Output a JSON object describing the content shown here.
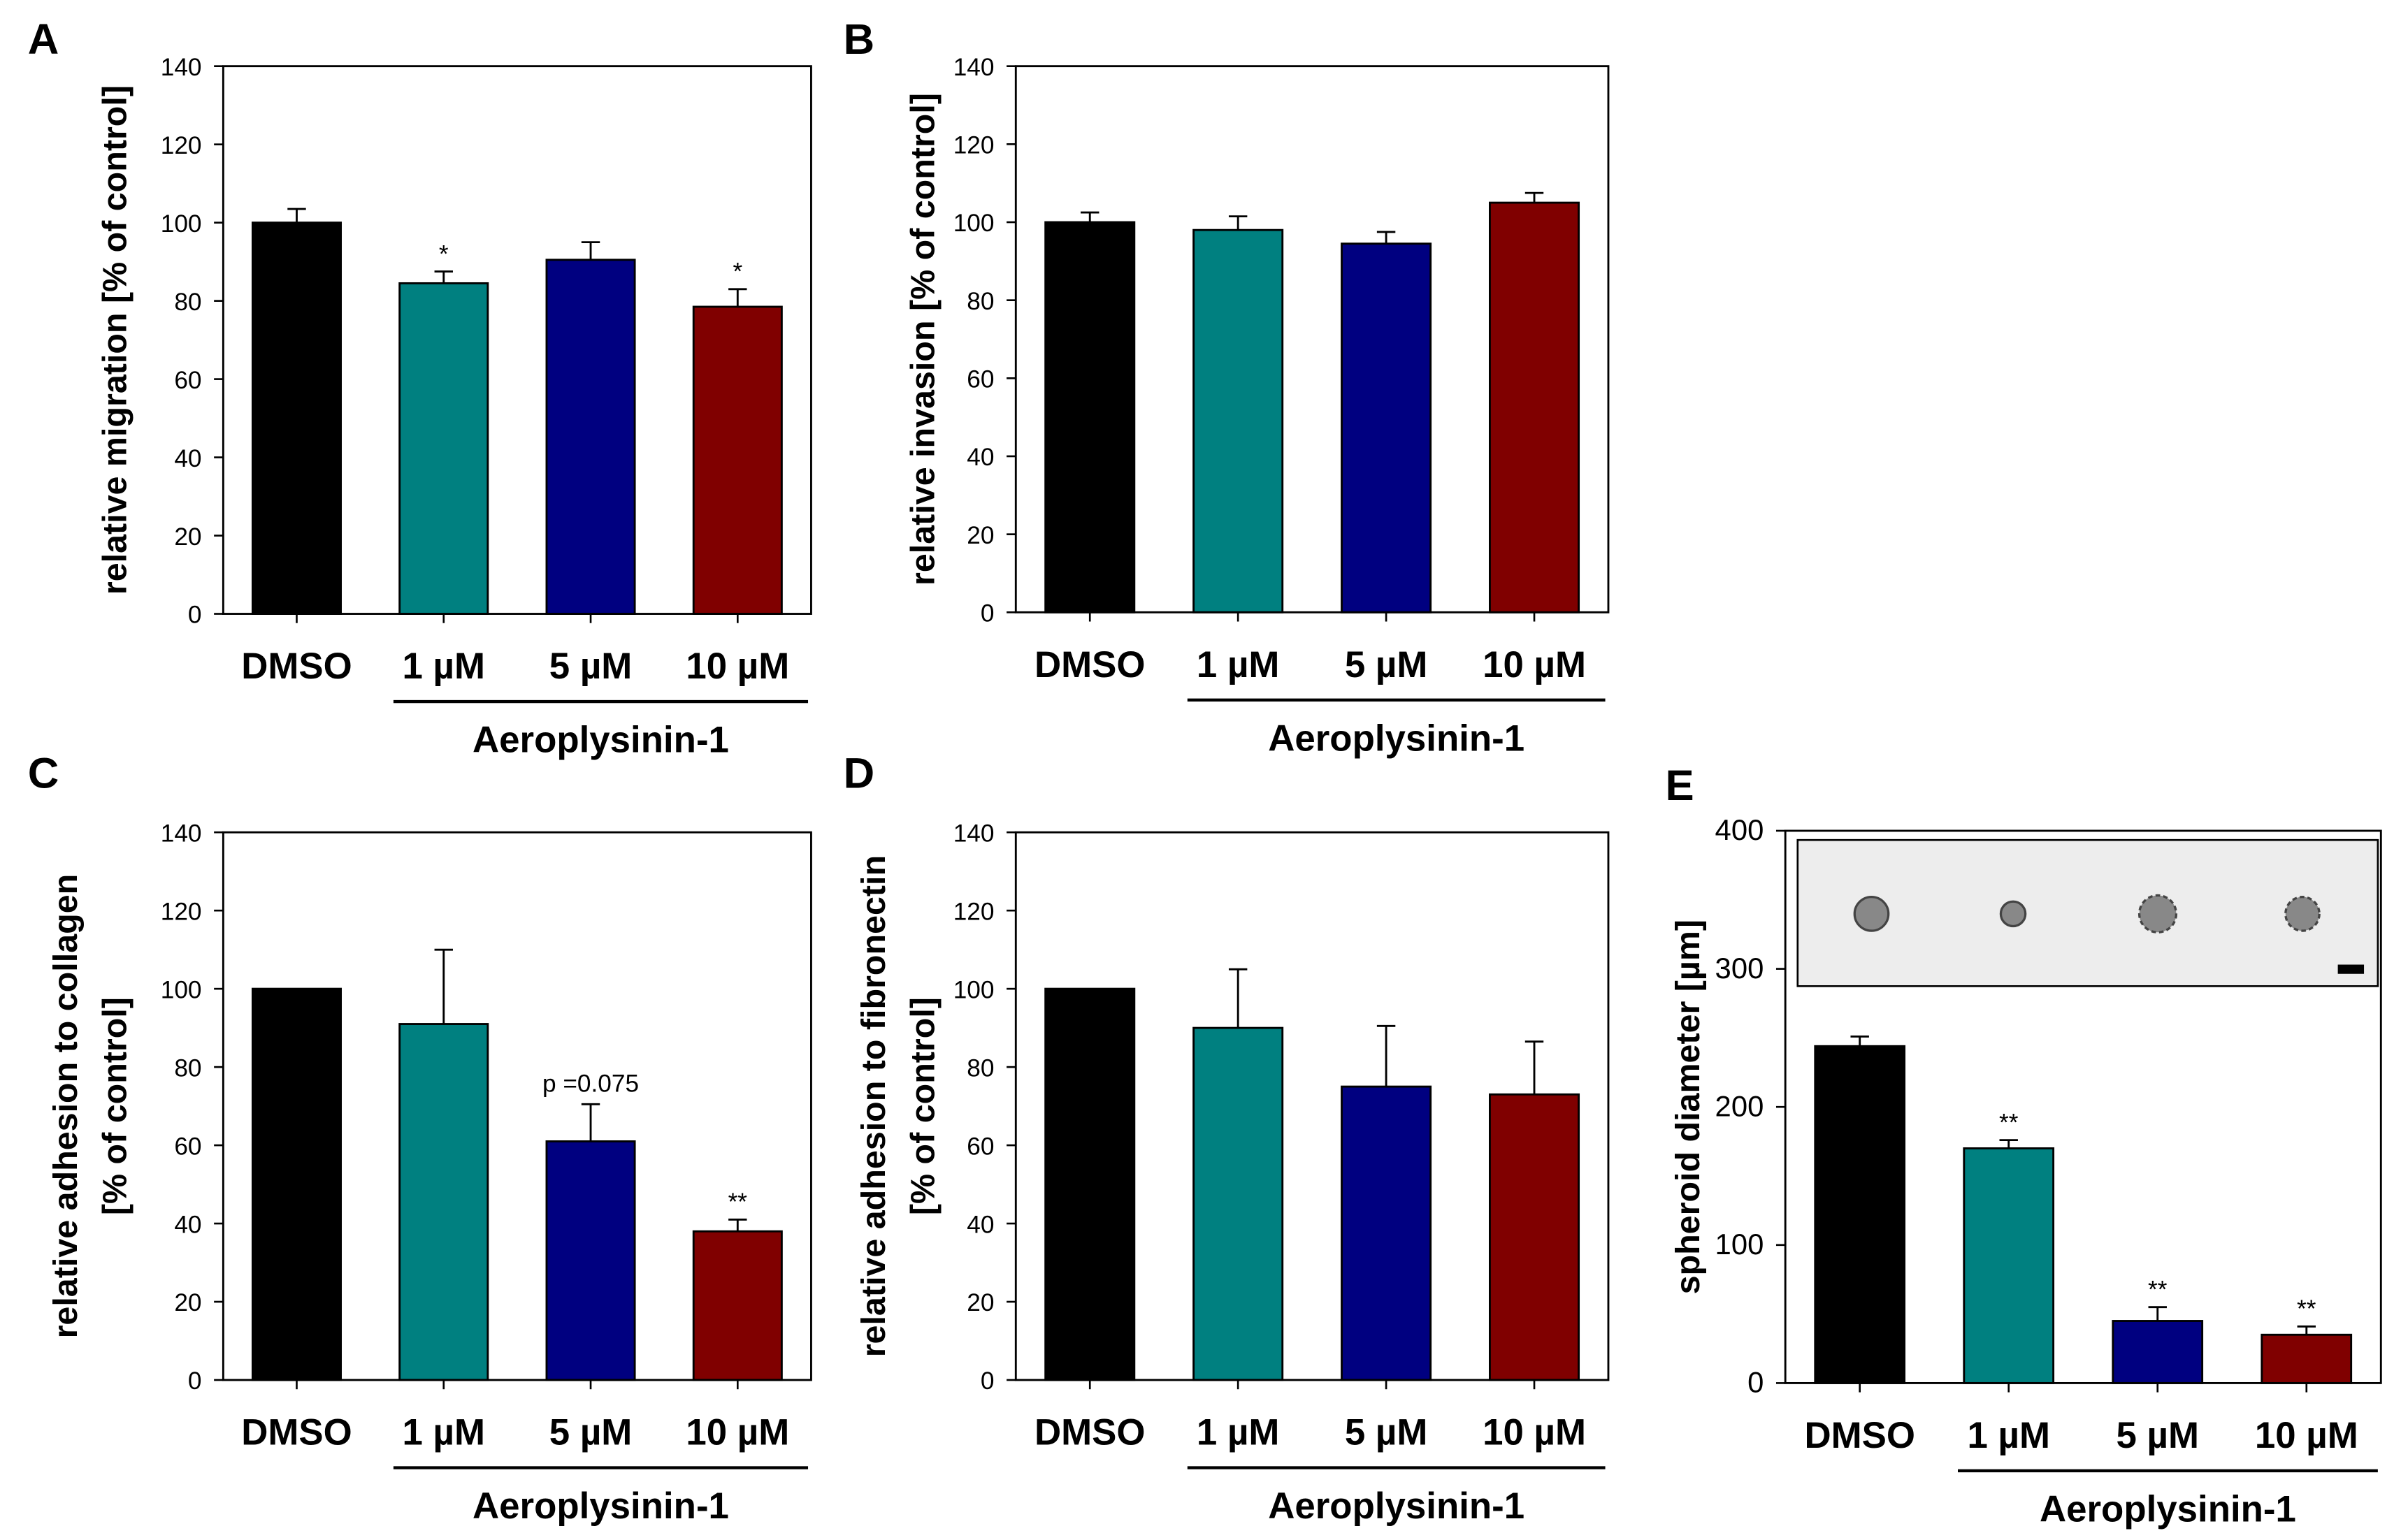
{
  "colors": {
    "DMSO": "#000000",
    "1 µM": "#008080",
    "5 µM": "#000080",
    "10 µM": "#800000"
  },
  "chart_data": [
    {
      "panel": "A",
      "type": "bar",
      "categories": [
        "DMSO",
        "1 µM",
        "5 µM",
        "10 µM"
      ],
      "values": [
        100,
        84.5,
        90.5,
        78.5
      ],
      "errors": [
        3.5,
        3,
        4.5,
        4.5
      ],
      "annotations": [
        "",
        "*",
        "",
        "*"
      ],
      "ylabel": [
        "relative migration [% of control]"
      ],
      "group_label": "Aeroplysinin-1",
      "ylim": [
        0,
        140
      ],
      "yticks": [
        0,
        20,
        40,
        60,
        80,
        100,
        120,
        140
      ],
      "grid": false
    },
    {
      "panel": "B",
      "type": "bar",
      "categories": [
        "DMSO",
        "1 µM",
        "5 µM",
        "10 µM"
      ],
      "values": [
        100,
        98,
        94.5,
        105
      ],
      "errors": [
        2.5,
        3.5,
        3,
        2.5
      ],
      "annotations": [
        "",
        "",
        "",
        ""
      ],
      "ylabel": [
        "relative invasion [% of control]"
      ],
      "group_label": "Aeroplysinin-1",
      "ylim": [
        0,
        140
      ],
      "yticks": [
        0,
        20,
        40,
        60,
        80,
        100,
        120,
        140
      ],
      "grid": false
    },
    {
      "panel": "C",
      "type": "bar",
      "categories": [
        "DMSO",
        "1 µM",
        "5 µM",
        "10 µM"
      ],
      "values": [
        100,
        91,
        61,
        38
      ],
      "errors": [
        0,
        19,
        9.5,
        3
      ],
      "annotations": [
        "",
        "",
        "p =0.075",
        "**"
      ],
      "ylabel": [
        "relative adhesion to collagen",
        "[% of control]"
      ],
      "group_label": "Aeroplysinin-1",
      "ylim": [
        0,
        140
      ],
      "yticks": [
        0,
        20,
        40,
        60,
        80,
        100,
        120,
        140
      ],
      "grid": false
    },
    {
      "panel": "D",
      "type": "bar",
      "categories": [
        "DMSO",
        "1 µM",
        "5 µM",
        "10 µM"
      ],
      "values": [
        100,
        90,
        75,
        73
      ],
      "errors": [
        0,
        15,
        15.5,
        13.5
      ],
      "annotations": [
        "",
        "",
        "",
        ""
      ],
      "ylabel": [
        "relative adhesion to fibronectin",
        "[% of control]"
      ],
      "group_label": "Aeroplysinin-1",
      "ylim": [
        0,
        140
      ],
      "yticks": [
        0,
        20,
        40,
        60,
        80,
        100,
        120,
        140
      ],
      "grid": false
    },
    {
      "panel": "E",
      "type": "bar",
      "categories": [
        "DMSO",
        "1 µM",
        "5 µM",
        "10 µM"
      ],
      "values": [
        244,
        170,
        45,
        35
      ],
      "errors": [
        7,
        6,
        10,
        6
      ],
      "annotations": [
        "",
        "**",
        "**",
        "**"
      ],
      "ylabel": [
        "spheroid diameter [µm]"
      ],
      "group_label": "Aeroplysinin-1",
      "ylim": [
        0,
        400
      ],
      "yticks": [
        0,
        100,
        200,
        300,
        400
      ],
      "grid": false,
      "inset": "spheroid micrographs"
    }
  ]
}
